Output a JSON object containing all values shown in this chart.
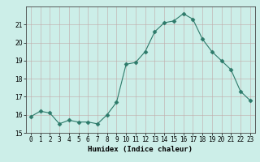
{
  "x": [
    0,
    1,
    2,
    3,
    4,
    5,
    6,
    7,
    8,
    9,
    10,
    11,
    12,
    13,
    14,
    15,
    16,
    17,
    18,
    19,
    20,
    21,
    22,
    23
  ],
  "y": [
    15.9,
    16.2,
    16.1,
    15.5,
    15.7,
    15.6,
    15.6,
    15.5,
    16.0,
    16.7,
    18.8,
    18.9,
    19.5,
    20.6,
    21.1,
    21.2,
    21.6,
    21.3,
    20.2,
    19.5,
    19.0,
    18.5,
    17.3,
    16.8
  ],
  "line_color": "#2d7a6a",
  "marker": "D",
  "marker_size": 2.5,
  "bg_color": "#cceee8",
  "grid_color": "#c0a8a8",
  "xlabel": "Humidex (Indice chaleur)",
  "xlim": [
    -0.5,
    23.5
  ],
  "ylim": [
    15,
    22
  ],
  "yticks": [
    15,
    16,
    17,
    18,
    19,
    20,
    21
  ],
  "xtick_labels": [
    "0",
    "1",
    "2",
    "3",
    "4",
    "5",
    "6",
    "7",
    "8",
    "9",
    "10",
    "11",
    "12",
    "13",
    "14",
    "15",
    "16",
    "17",
    "18",
    "19",
    "20",
    "21",
    "22",
    "23"
  ],
  "label_fontsize": 6.5,
  "tick_fontsize": 5.5
}
